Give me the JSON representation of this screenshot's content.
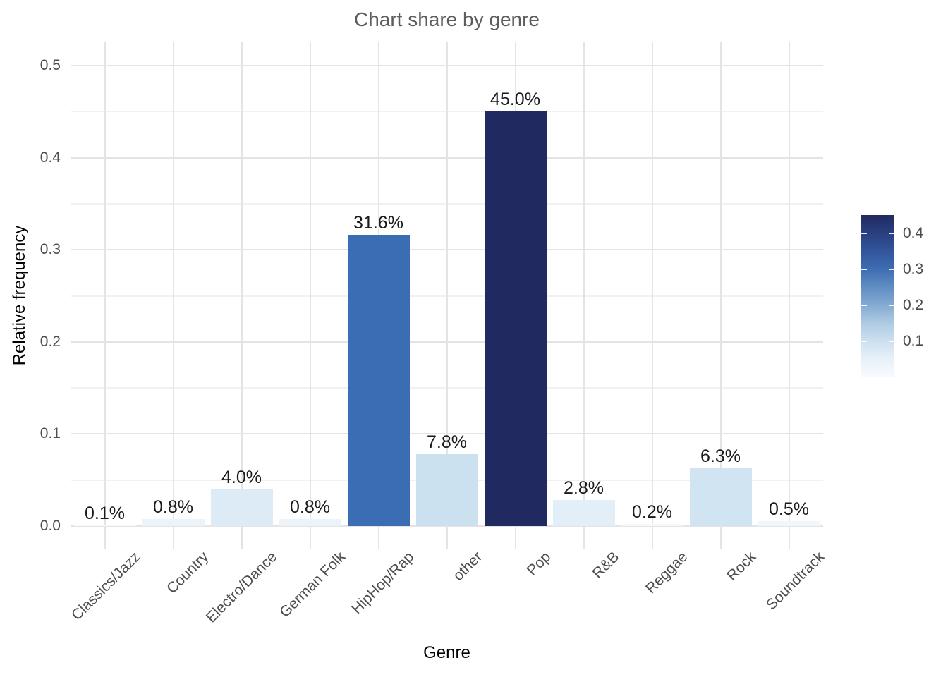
{
  "chart_data": {
    "type": "bar",
    "title": "Chart share by genre",
    "xlabel": "Genre",
    "ylabel": "Relative frequency",
    "ylim": [
      0,
      0.5
    ],
    "grid": "on",
    "categories": [
      "Classics/Jazz",
      "Country",
      "Electro/Dance",
      "German Folk",
      "HipHop/Rap",
      "other",
      "Pop",
      "R&B",
      "Reggae",
      "Rock",
      "Soundtrack"
    ],
    "values": [
      0.001,
      0.008,
      0.04,
      0.008,
      0.316,
      0.078,
      0.45,
      0.028,
      0.002,
      0.063,
      0.005
    ],
    "bar_labels": [
      "0.1%",
      "0.8%",
      "4.0%",
      "0.8%",
      "31.6%",
      "7.8%",
      "45.0%",
      "2.8%",
      "0.2%",
      "6.3%",
      "0.5%"
    ],
    "bar_colors": [
      "#f6fafe",
      "#ecf4fa",
      "#dcebf5",
      "#ecf4fa",
      "#3a6db4",
      "#cbe1f0",
      "#212a60",
      "#e2eff8",
      "#f4f9fd",
      "#d0e4f1",
      "#f0f7fc"
    ],
    "y_tick_labels": [
      "0.0",
      "0.1",
      "0.2",
      "0.3",
      "0.4",
      "0.5"
    ],
    "y_tick_values": [
      0.0,
      0.1,
      0.2,
      0.3,
      0.4,
      0.5
    ],
    "y_minor_tick_values": [
      0.05,
      0.15,
      0.25,
      0.35,
      0.45
    ],
    "legend": {
      "type": "colorbar",
      "position": "right",
      "min": 0,
      "max": 0.45,
      "tick_labels": [
        "0.4",
        "0.3",
        "0.2",
        "0.1"
      ],
      "tick_values": [
        0.4,
        0.3,
        0.2,
        0.1
      ],
      "gradient_bottom_to_top": [
        "#f7fbff",
        "#e8f1f9",
        "#cde0ef",
        "#aecbe3",
        "#85abd2",
        "#5f8dc3",
        "#3f6db1",
        "#32559c",
        "#293f80",
        "#212a60"
      ]
    }
  },
  "colors": {
    "background": "#ffffff",
    "title_text": "#5d5d5d",
    "axis_text": "#4d4d4d",
    "axis_title_text": "#000000",
    "bar_label_text": "#1a1a1a",
    "grid_major": "#e4e4e4",
    "grid_minor": "#f1f1f1"
  }
}
